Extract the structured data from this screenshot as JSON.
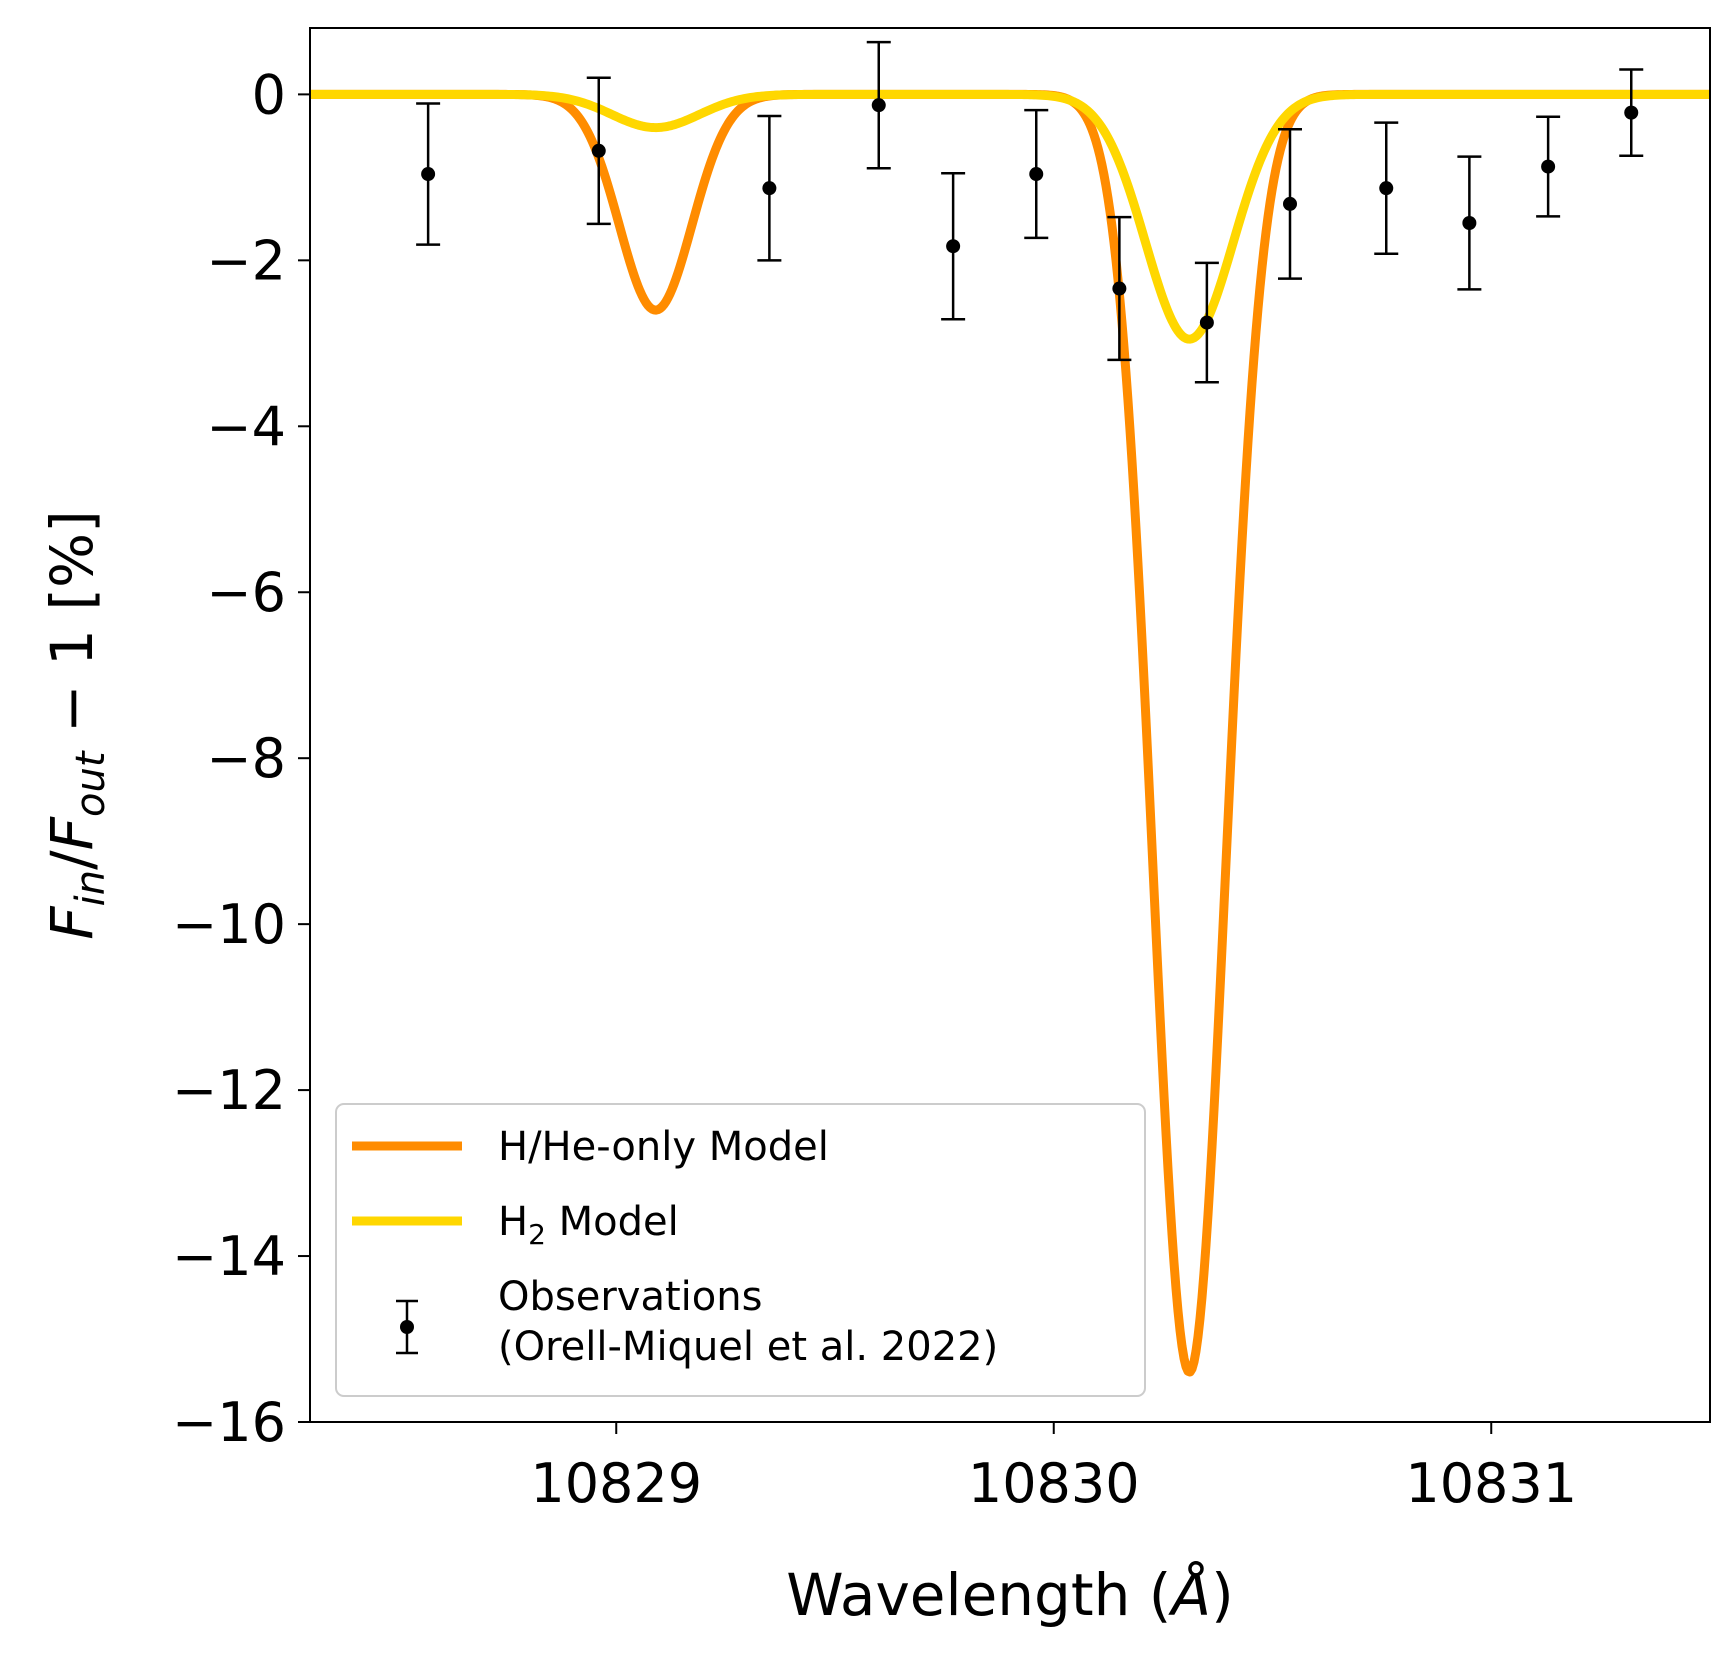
{
  "chart_data": {
    "type": "line",
    "xlabel": "Wavelength ($\\AA$)",
    "xlabel_parts": {
      "main": "Wavelength (",
      "unit": "Å",
      "close": ")"
    },
    "ylabel": "$F_{in}/F_{out} - 1$ [%]",
    "ylabel_parts": {
      "f1": "F",
      "sub1": "in",
      "slash": "/",
      "f2": "F",
      "sub2": "out",
      "rest": " − 1 [%]"
    },
    "xlim": [
      10828.3,
      10831.5
    ],
    "ylim": [
      -16,
      0.8
    ],
    "x_ticks": [
      10829,
      10830,
      10831
    ],
    "x_tick_labels": [
      "10829",
      "10830",
      "10831"
    ],
    "y_ticks": [
      0,
      -2,
      -4,
      -6,
      -8,
      -10,
      -12,
      -14,
      -16
    ],
    "y_tick_labels": [
      "0",
      "−2",
      "−4",
      "−6",
      "−8",
      "−10",
      "−12",
      "−14",
      "−16"
    ],
    "grid": false,
    "legend_placement": "lower-left",
    "colors": {
      "hhe": "#ff8c00",
      "h2": "#ffd700",
      "obs": "#000000"
    },
    "series": [
      {
        "key": "hhe",
        "name": "H/He-only Model",
        "lines": [
          {
            "center": 10829.09,
            "depth": 2.6,
            "sigma": 0.083
          },
          {
            "center": 10830.31,
            "depth": 15.4,
            "sigma": 0.083
          }
        ]
      },
      {
        "key": "h2",
        "name_parts": {
          "base": "H",
          "sub": "2",
          "rest": " Model"
        },
        "lines": [
          {
            "center": 10829.09,
            "depth": 0.4,
            "sigma": 0.1
          },
          {
            "center": 10830.31,
            "depth": 2.95,
            "sigma": 0.1
          }
        ]
      }
    ],
    "observations": {
      "legend_line1": "Observations",
      "legend_line2": "(Orell-Miquel et al. 2022)",
      "points": [
        {
          "x": 10828.57,
          "y": -0.96,
          "err": 0.85
        },
        {
          "x": 10828.96,
          "y": -0.68,
          "err": 0.88
        },
        {
          "x": 10829.35,
          "y": -1.13,
          "err": 0.87
        },
        {
          "x": 10829.6,
          "y": -0.13,
          "err": 0.76
        },
        {
          "x": 10829.77,
          "y": -1.83,
          "err": 0.88
        },
        {
          "x": 10829.96,
          "y": -0.96,
          "err": 0.77
        },
        {
          "x": 10830.15,
          "y": -2.34,
          "err": 0.86
        },
        {
          "x": 10830.35,
          "y": -2.75,
          "err": 0.72
        },
        {
          "x": 10830.54,
          "y": -1.32,
          "err": 0.9
        },
        {
          "x": 10830.76,
          "y": -1.13,
          "err": 0.79
        },
        {
          "x": 10830.95,
          "y": -1.55,
          "err": 0.8
        },
        {
          "x": 10831.13,
          "y": -0.87,
          "err": 0.6
        },
        {
          "x": 10831.32,
          "y": -0.22,
          "err": 0.52
        }
      ]
    }
  }
}
